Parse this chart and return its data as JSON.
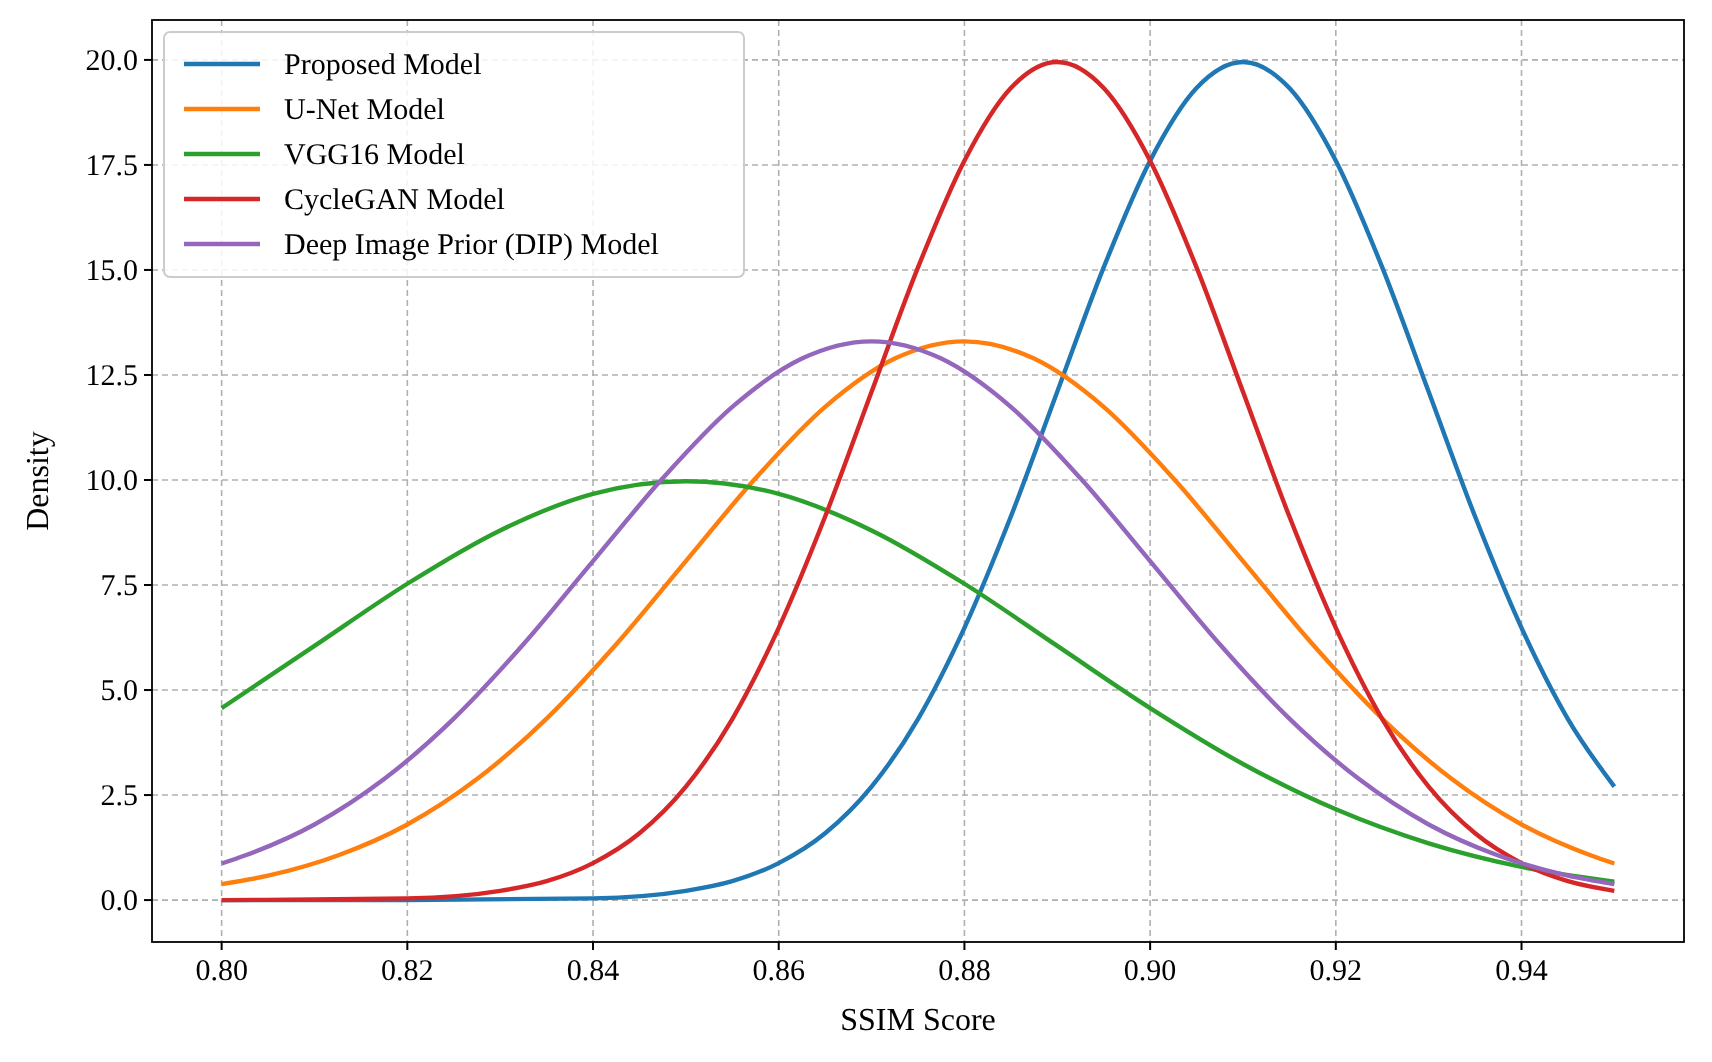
{
  "chart_data": {
    "type": "line",
    "xlabel": "SSIM Score",
    "ylabel": "Density",
    "xlim": [
      0.7925,
      0.9575
    ],
    "ylim": [
      -0.998,
      20.95
    ],
    "xticks": [
      {
        "value": 0.8,
        "label": "0.80"
      },
      {
        "value": 0.82,
        "label": "0.82"
      },
      {
        "value": 0.84,
        "label": "0.84"
      },
      {
        "value": 0.86,
        "label": "0.86"
      },
      {
        "value": 0.88,
        "label": "0.88"
      },
      {
        "value": 0.9,
        "label": "0.90"
      },
      {
        "value": 0.92,
        "label": "0.92"
      },
      {
        "value": 0.94,
        "label": "0.94"
      }
    ],
    "yticks": [
      {
        "value": 0,
        "label": "0.0"
      },
      {
        "value": 2.5,
        "label": "2.5"
      },
      {
        "value": 5,
        "label": "5.0"
      },
      {
        "value": 7.5,
        "label": "7.5"
      },
      {
        "value": 10,
        "label": "10.0"
      },
      {
        "value": 12.5,
        "label": "12.5"
      },
      {
        "value": 15,
        "label": "15.0"
      },
      {
        "value": 17.5,
        "label": "17.5"
      },
      {
        "value": 20,
        "label": "20.0"
      }
    ],
    "grid": true,
    "legend": "top left",
    "line_style": "solid",
    "series": [
      {
        "name": "Proposed Model",
        "color": "#1f77b4",
        "x": [
          0.8,
          0.82,
          0.84,
          0.85,
          0.855,
          0.86,
          0.865,
          0.87,
          0.875,
          0.88,
          0.885,
          0.89,
          0.895,
          0.9,
          0.905,
          0.91,
          0.915,
          0.92,
          0.925,
          0.93,
          0.935,
          0.94,
          0.945,
          0.95
        ],
        "values": [
          0.0,
          0.0,
          0.04,
          0.22,
          0.45,
          0.88,
          1.59,
          2.7,
          4.31,
          6.48,
          9.13,
          12.1,
          15.06,
          17.6,
          19.33,
          19.95,
          19.33,
          17.6,
          15.06,
          12.1,
          9.13,
          6.48,
          4.31,
          2.7
        ]
      },
      {
        "name": "U-Net Model",
        "color": "#ff7f0e",
        "x": [
          0.8,
          0.805,
          0.8125,
          0.82,
          0.8275,
          0.835,
          0.8425,
          0.85,
          0.8575,
          0.865,
          0.8725,
          0.88,
          0.8875,
          0.895,
          0.9025,
          0.91,
          0.9175,
          0.925,
          0.9325,
          0.94,
          0.9475,
          0.95
        ],
        "values": [
          0.38,
          0.58,
          1.06,
          1.8,
          2.88,
          4.32,
          6.09,
          8.07,
          10.04,
          11.74,
          12.89,
          13.3,
          12.89,
          11.74,
          10.04,
          8.07,
          6.09,
          4.32,
          2.88,
          1.8,
          1.06,
          0.87
        ]
      },
      {
        "name": "VGG16 Model",
        "color": "#2ca02c",
        "x": [
          0.8,
          0.81,
          0.82,
          0.83,
          0.84,
          0.85,
          0.86,
          0.87,
          0.88,
          0.89,
          0.9,
          0.91,
          0.92,
          0.93,
          0.94,
          0.95
        ],
        "values": [
          4.57,
          6.05,
          7.53,
          8.8,
          9.67,
          9.97,
          9.67,
          8.8,
          7.53,
          6.05,
          4.57,
          3.24,
          2.16,
          1.35,
          0.79,
          0.44
        ]
      },
      {
        "name": "CycleGAN Model",
        "color": "#d62728",
        "x": [
          0.8,
          0.82,
          0.83,
          0.835,
          0.84,
          0.845,
          0.85,
          0.855,
          0.86,
          0.865,
          0.87,
          0.875,
          0.88,
          0.885,
          0.89,
          0.895,
          0.9,
          0.905,
          0.91,
          0.915,
          0.92,
          0.925,
          0.93,
          0.935,
          0.94,
          0.945,
          0.95
        ],
        "values": [
          0.0,
          0.04,
          0.22,
          0.45,
          0.88,
          1.59,
          2.7,
          4.31,
          6.48,
          9.13,
          12.1,
          15.06,
          17.6,
          19.33,
          19.95,
          19.33,
          17.6,
          15.06,
          12.1,
          9.13,
          6.48,
          4.31,
          2.7,
          1.59,
          0.88,
          0.45,
          0.22
        ]
      },
      {
        "name": "Deep Image Prior (DIP) Model",
        "color": "#9467bd",
        "x": [
          0.8,
          0.8025,
          0.81,
          0.8175,
          0.825,
          0.8325,
          0.84,
          0.8475,
          0.855,
          0.8625,
          0.87,
          0.8775,
          0.885,
          0.8925,
          0.9,
          0.9075,
          0.915,
          0.9225,
          0.93,
          0.9375,
          0.945,
          0.95
        ],
        "values": [
          0.87,
          1.06,
          1.8,
          2.88,
          4.32,
          6.09,
          8.07,
          10.04,
          11.74,
          12.89,
          13.3,
          12.89,
          11.74,
          10.04,
          8.07,
          6.09,
          4.32,
          2.88,
          1.8,
          1.06,
          0.58,
          0.38
        ]
      }
    ]
  }
}
